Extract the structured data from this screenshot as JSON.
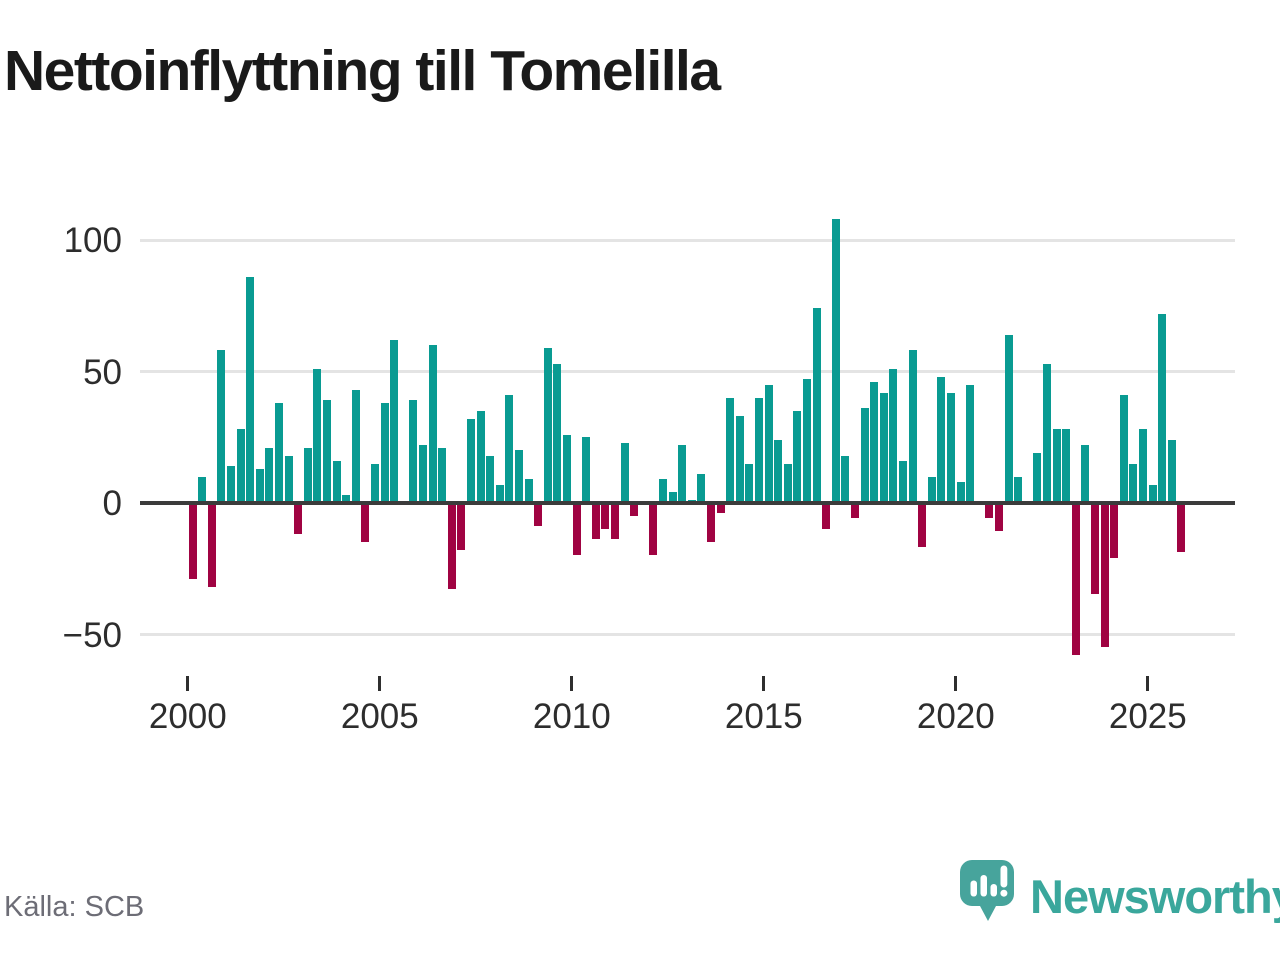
{
  "title": "Nettoinflyttning till Tomelilla",
  "source_label": "Källa: SCB",
  "logo": {
    "brand": "Newsworthy"
  },
  "colors": {
    "positive": "#099b92",
    "negative": "#a00342",
    "logo_teal": "#3aa79c",
    "logo_bubble": "#47a49c",
    "title_text": "#1a1a1a",
    "axis_text": "#2d2d2d",
    "source_text": "#6d6d76",
    "gridline": "#e4e4e4",
    "zero_line": "#3b3b3b"
  },
  "chart_data": {
    "type": "bar",
    "title": "Nettoinflyttning till Tomelilla",
    "frequency": "quarterly",
    "start": "2000 Q1",
    "end": "2025 Q4",
    "grid": "horizontal",
    "legend": "none",
    "ylim": [
      -65,
      112
    ],
    "yticks": [
      100,
      50,
      0,
      -50
    ],
    "xticks": [
      2000,
      2005,
      2010,
      2015,
      2020,
      2025
    ],
    "values_by_year": {
      "2000": [
        -28,
        10,
        -31,
        58
      ],
      "2001": [
        14,
        28,
        86,
        13
      ],
      "2002": [
        21,
        38,
        18,
        -11
      ],
      "2003": [
        21,
        51,
        39,
        16
      ],
      "2004": [
        3,
        43,
        -14,
        15
      ],
      "2005": [
        38,
        62,
        0,
        39
      ],
      "2006": [
        22,
        60,
        21,
        -32
      ],
      "2007": [
        -17,
        32,
        35,
        18
      ],
      "2008": [
        7,
        41,
        20,
        9
      ],
      "2009": [
        -8,
        59,
        53,
        26
      ],
      "2010": [
        -19,
        25,
        -13,
        -9
      ],
      "2011": [
        -13,
        23,
        -4,
        0
      ],
      "2012": [
        -19,
        9,
        4,
        22
      ],
      "2013": [
        1,
        11,
        -14,
        -3
      ],
      "2014": [
        40,
        33,
        15,
        40
      ],
      "2015": [
        45,
        24,
        15,
        35
      ],
      "2016": [
        47,
        74,
        -9,
        108
      ],
      "2017": [
        18,
        -5,
        36,
        46
      ],
      "2018": [
        42,
        51,
        16,
        58
      ],
      "2019": [
        -16,
        10,
        48,
        42
      ],
      "2020": [
        8,
        45,
        0,
        -5
      ],
      "2021": [
        -10,
        64,
        10,
        0
      ],
      "2022": [
        19,
        53,
        28,
        28
      ],
      "2023": [
        -57,
        22,
        -34,
        -54
      ],
      "2024": [
        -20,
        41,
        15,
        28
      ],
      "2025": [
        7,
        72,
        24,
        -18
      ]
    }
  }
}
